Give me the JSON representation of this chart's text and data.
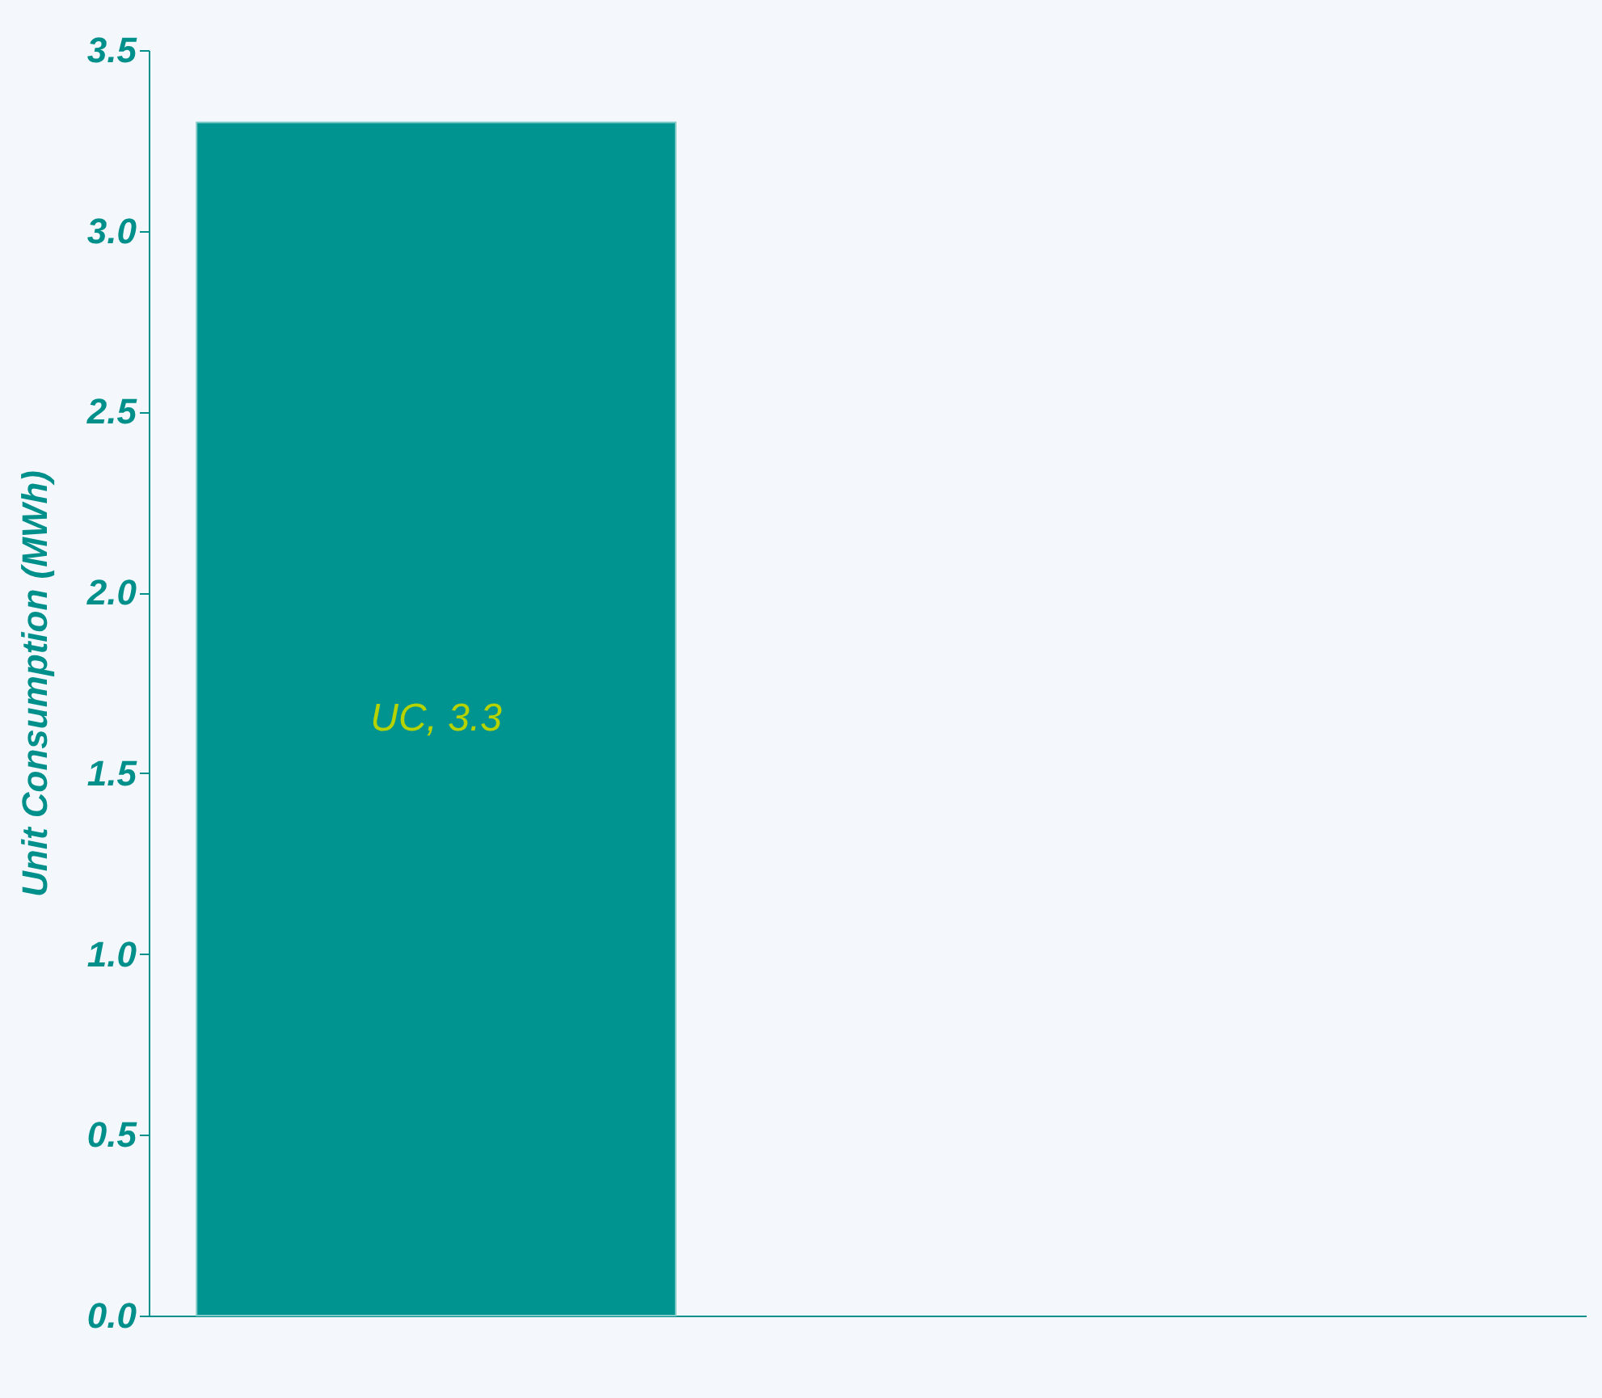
{
  "chart_data": {
    "type": "bar",
    "ylabel": "Unit Consumption (MWh)",
    "categories": [
      null
    ],
    "values": [
      3.3
    ],
    "value_labels": [
      "UC, 3.3"
    ],
    "color": "#009490",
    "ylim": [
      0,
      3.5
    ],
    "yticks": [
      {
        "value": 0,
        "label": "0.0"
      },
      {
        "value": 0.5,
        "label": "0.5"
      },
      {
        "value": 1,
        "label": "1.0"
      },
      {
        "value": 1.5,
        "label": "1.5"
      },
      {
        "value": 2,
        "label": "2.0"
      },
      {
        "value": 2.5,
        "label": "2.5"
      },
      {
        "value": 3,
        "label": "3.0"
      },
      {
        "value": 3.5,
        "label": "3.5"
      }
    ],
    "grid": false
  }
}
